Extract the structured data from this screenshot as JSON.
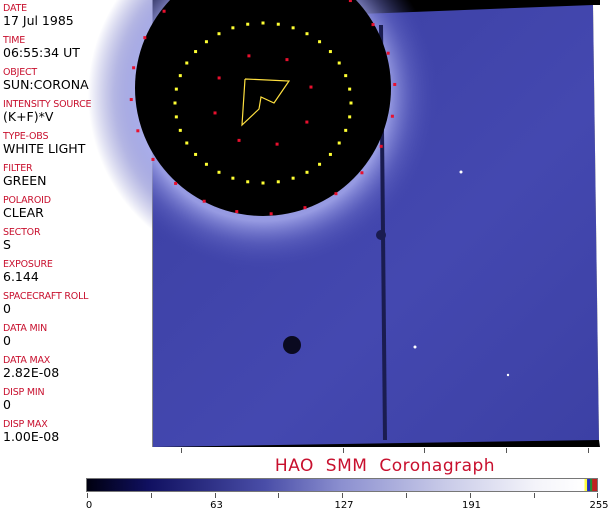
{
  "metadata_panel": {
    "entries": [
      {
        "label": "DATE",
        "value": "17 Jul 1985"
      },
      {
        "label": "TIME",
        "value": "06:55:34 UT"
      },
      {
        "label": "OBJECT",
        "value": "SUN:CORONA"
      },
      {
        "label": "INTENSITY SOURCE",
        "value": "(K+F)*V"
      },
      {
        "label": "TYPE-OBS",
        "value": "WHITE LIGHT"
      },
      {
        "label": "FILTER",
        "value": "GREEN"
      },
      {
        "label": "POLAROID",
        "value": "CLEAR"
      },
      {
        "label": "SECTOR",
        "value": "S"
      },
      {
        "label": "EXPOSURE",
        "value": "6.144"
      },
      {
        "label": "SPACECRAFT ROLL",
        "value": "0"
      },
      {
        "label": "DATA MIN",
        "value": "0"
      },
      {
        "label": "DATA MAX",
        "value": "2.82E-08"
      },
      {
        "label": "DISP MIN",
        "value": "0"
      },
      {
        "label": "DISP MAX",
        "value": "1.00E-08"
      }
    ]
  },
  "title": "HAO   SMM  Coronagraph",
  "colorbar": {
    "ticks": [
      "0",
      "63",
      "127",
      "191",
      "255"
    ],
    "colors": {
      "low": "#000010",
      "mid": "#8c90d0",
      "high": "#ffffff"
    }
  },
  "colors": {
    "label": "#c8102e",
    "overlay_yellow": "#ffff33",
    "overlay_red": "#e8102e"
  }
}
